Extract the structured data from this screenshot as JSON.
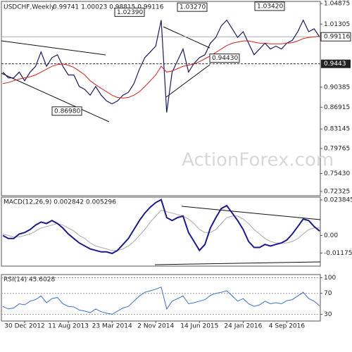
{
  "chart_data": {
    "type": "line",
    "title": "USDCHF,Weekly",
    "subtitle": "0.99741 1.00023 0.98815 0.99116",
    "watermark": "ActionForex.com",
    "categories": [
      null,
      null,
      null,
      null,
      "30 Dec 2012",
      null,
      null,
      null,
      null,
      null,
      null,
      null,
      "11 Aug 2013",
      null,
      null,
      null,
      null,
      null,
      null,
      null,
      "23 Mar 2014",
      null,
      null,
      null,
      null,
      null,
      null,
      null,
      "2 Nov 2014",
      null,
      null,
      null,
      null,
      null,
      null,
      null,
      "14 Jun 2015",
      null,
      null,
      null,
      null,
      null,
      null,
      null,
      "24 Jan 2016",
      null,
      null,
      null,
      null,
      null,
      null,
      null,
      "4 Sep 2016",
      null,
      null,
      null,
      null,
      null,
      null
    ],
    "series": [
      {
        "name": "USDCHF",
        "color": "#1a1a5e",
        "values": [
          0.93,
          0.92,
          0.92,
          0.93,
          0.915,
          0.93,
          0.94,
          0.965,
          0.94,
          0.955,
          0.96,
          0.94,
          0.925,
          0.925,
          0.905,
          0.9,
          0.89,
          0.905,
          0.89,
          0.88,
          0.875,
          0.88,
          0.89,
          0.895,
          0.91,
          0.935,
          0.955,
          0.965,
          0.975,
          1.02,
          0.86,
          0.93,
          0.95,
          0.97,
          0.93,
          0.945,
          0.955,
          0.96,
          0.98,
          0.99,
          1.01,
          1.02,
          1.005,
          0.99,
          1.0,
          0.98,
          0.96,
          0.97,
          0.98,
          0.97,
          0.975,
          0.97,
          0.98,
          0.985,
          1.0,
          1.02,
          1.0,
          1.005,
          0.991
        ]
      },
      {
        "name": "MA",
        "color": "#d42020",
        "values": [
          0.91,
          0.912,
          0.915,
          0.918,
          0.92,
          0.922,
          0.925,
          0.93,
          0.935,
          0.94,
          0.943,
          0.944,
          0.942,
          0.938,
          0.932,
          0.925,
          0.915,
          0.908,
          0.902,
          0.896,
          0.89,
          0.886,
          0.885,
          0.886,
          0.89,
          0.896,
          0.905,
          0.915,
          0.925,
          0.94,
          0.93,
          0.932,
          0.936,
          0.94,
          0.942,
          0.944,
          0.948,
          0.953,
          0.958,
          0.964,
          0.97,
          0.976,
          0.98,
          0.982,
          0.984,
          0.984,
          0.982,
          0.98,
          0.98,
          0.979,
          0.979,
          0.979,
          0.98,
          0.981,
          0.984,
          0.988,
          0.99,
          0.991,
          0.992
        ]
      }
    ],
    "ylim": [
      0.7159,
      1.0524
    ],
    "yticks": [
      1.04875,
      1.01305,
      0.90385,
      0.86915,
      0.83145,
      0.79765,
      {
        "value": 0.7543,
        "label": "0.75430"
      },
      0.72325
    ],
    "last_price": {
      "value": 0.99116,
      "label": "0.99116"
    },
    "level": {
      "value": 0.9443,
      "label": "0.9443"
    },
    "annotations": [
      {
        "value": 1.0239,
        "label": "1.02390"
      },
      {
        "value": 1.0327,
        "label": "1.03270"
      },
      {
        "value": 1.0342,
        "label": "1.03420"
      },
      {
        "value": 0.8698,
        "label": "0.86980"
      },
      {
        "value": 0.9443,
        "label": "0.94430"
      }
    ],
    "macd": {
      "title": "MACD(12,26,9) 0.002842 0.005296",
      "ylim": [
        -0.0205,
        0.0257
      ],
      "yticks": [
        0.023845,
        {
          "value": 0,
          "label": "0.00"
        },
        -0.01175
      ],
      "series": [
        {
          "name": "MACD",
          "color": "#1b1b8f",
          "values": [
            0.0,
            -0.002,
            -0.002,
            0.001,
            0.002,
            0.004,
            0.007,
            0.009,
            0.008,
            0.01,
            0.008,
            0.005,
            0.001,
            -0.002,
            -0.005,
            -0.007,
            -0.009,
            -0.01,
            -0.011,
            -0.011,
            -0.012,
            -0.01,
            -0.006,
            -0.002,
            0.004,
            0.01,
            0.015,
            0.019,
            0.022,
            0.024,
            0.012,
            0.01,
            0.012,
            0.013,
            0.002,
            -0.004,
            -0.01,
            -0.006,
            0.005,
            0.012,
            0.018,
            0.02,
            0.015,
            0.01,
            0.004,
            -0.004,
            -0.008,
            -0.008,
            -0.006,
            -0.007,
            -0.006,
            -0.005,
            -0.003,
            0.001,
            0.006,
            0.011,
            0.01,
            0.006,
            0.003
          ]
        },
        {
          "name": "Signal",
          "color": "#aaaaaa",
          "values": [
            0.001,
            0.0,
            -0.001,
            -0.001,
            0.0,
            0.001,
            0.003,
            0.005,
            0.006,
            0.007,
            0.008,
            0.007,
            0.005,
            0.003,
            0.0,
            -0.002,
            -0.005,
            -0.007,
            -0.008,
            -0.009,
            -0.01,
            -0.01,
            -0.009,
            -0.007,
            -0.004,
            0.0,
            0.004,
            0.009,
            0.013,
            0.017,
            0.016,
            0.015,
            0.014,
            0.013,
            0.011,
            0.008,
            0.004,
            0.002,
            0.002,
            0.004,
            0.008,
            0.012,
            0.013,
            0.013,
            0.011,
            0.008,
            0.004,
            0.001,
            -0.002,
            -0.004,
            -0.005,
            -0.005,
            -0.005,
            -0.004,
            -0.002,
            0.001,
            0.004,
            0.005,
            0.005
          ]
        }
      ]
    },
    "rsi": {
      "title": "RSI(14) 45.6028",
      "ylim": [
        17,
        106
      ],
      "yticks": [
        100,
        70,
        30
      ],
      "series": [
        {
          "name": "RSI",
          "color": "#3a6fc9",
          "values": [
            45,
            40,
            42,
            50,
            48,
            55,
            58,
            65,
            52,
            60,
            62,
            50,
            45,
            44,
            38,
            36,
            33,
            40,
            35,
            32,
            30,
            36,
            42,
            45,
            55,
            65,
            72,
            75,
            78,
            82,
            40,
            55,
            60,
            65,
            50,
            52,
            55,
            58,
            66,
            70,
            72,
            75,
            65,
            55,
            60,
            50,
            45,
            48,
            55,
            50,
            52,
            50,
            56,
            58,
            65,
            72,
            60,
            55,
            46
          ]
        }
      ]
    }
  }
}
